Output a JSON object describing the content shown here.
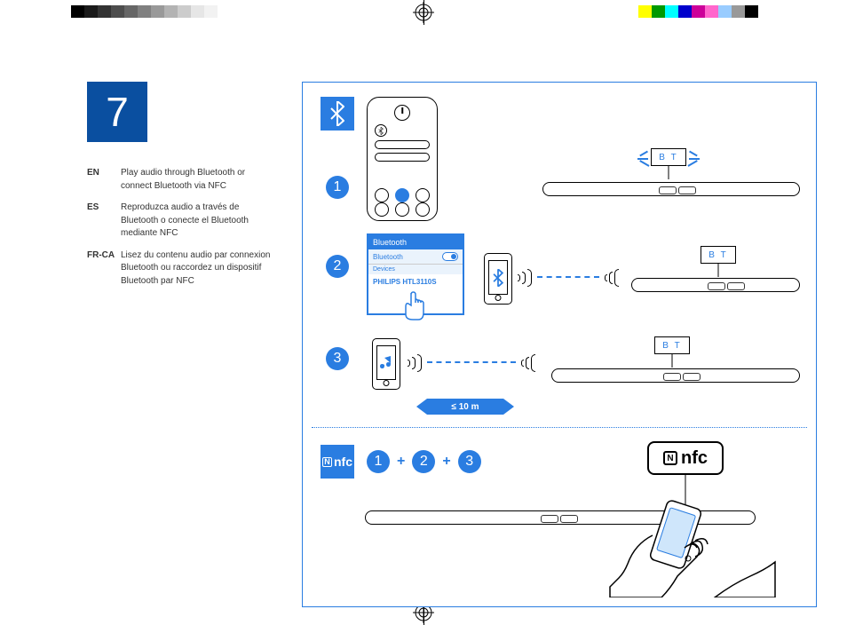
{
  "colors": {
    "brand_blue": "#2a7de1",
    "dark_blue": "#0a4fa0",
    "black": "#000000",
    "white": "#ffffff",
    "popup_bg": "#eaf3fc"
  },
  "colorbar_left": [
    "#000000",
    "#1a1a1a",
    "#333333",
    "#4d4d4d",
    "#666666",
    "#808080",
    "#999999",
    "#b3b3b3",
    "#cccccc",
    "#e6e6e6",
    "#f2f2f2",
    "#ffffff"
  ],
  "colorbar_right": [
    "#ffff00",
    "#009900",
    "#00ffff",
    "#0000cc",
    "#cc0099",
    "#ff66cc",
    "#99ccff",
    "#999999",
    "#000000"
  ],
  "step_number": "7",
  "languages": [
    {
      "code": "EN",
      "text": "Play audio through Bluetooth or connect Bluetooth via NFC"
    },
    {
      "code": "ES",
      "text": "Reproduzca audio a través de Bluetooth o conecte el Bluetooth mediante NFC"
    },
    {
      "code": "FR-CA",
      "text": "Lisez du contenu audio par connexion Bluetooth ou raccordez un dispositif Bluetooth par NFC"
    }
  ],
  "bt_popup": {
    "title": "Bluetooth",
    "toggle_label": "Bluetooth",
    "section": "Devices",
    "device": "PHILIPS HTL3110S"
  },
  "display_text": "B T",
  "distance_label": "≤ 10 m",
  "nfc_small": "nfc",
  "nfc_big": "nfc",
  "nfc_n": "N",
  "steps": [
    "1",
    "2",
    "3"
  ],
  "plus": "+"
}
